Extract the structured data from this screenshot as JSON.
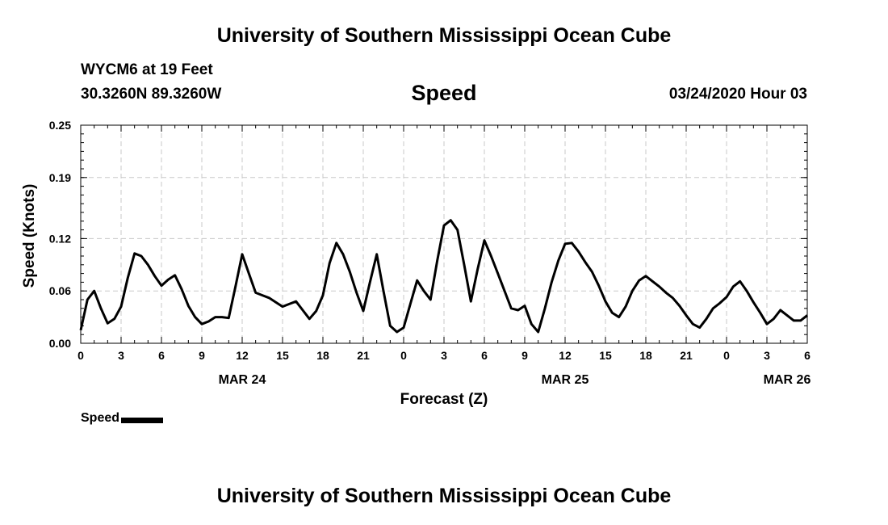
{
  "header": {
    "top_title": "University of Southern Mississippi Ocean Cube",
    "station": "WYCM6 at 19 Feet",
    "coords": "30.3260N 89.3260W",
    "variable_title": "Speed",
    "run_time": "03/24/2020 Hour 03"
  },
  "footer": {
    "bottom_title": "University of Southern Mississippi Ocean Cube"
  },
  "legend": {
    "label": "Speed"
  },
  "colors": {
    "line": "#000000",
    "grid": "#c8c8c8",
    "background": "#ffffff"
  },
  "chart_data": {
    "type": "line",
    "title": "Speed",
    "xlabel": "Forecast (Z)",
    "ylabel": "Speed (Knots)",
    "xlim": [
      0,
      54
    ],
    "ylim": [
      0.0,
      0.25
    ],
    "grid": true,
    "legend_placement": "bottom-left",
    "x_ticks": [
      0,
      3,
      6,
      9,
      12,
      15,
      18,
      21,
      24,
      27,
      30,
      33,
      36,
      39,
      42,
      45,
      48,
      51,
      54
    ],
    "x_tick_labels": [
      "0",
      "3",
      "6",
      "9",
      "12",
      "15",
      "18",
      "21",
      "0",
      "3",
      "6",
      "9",
      "12",
      "15",
      "18",
      "21",
      "0",
      "3",
      "6"
    ],
    "y_ticks": [
      0.0,
      0.06,
      0.12,
      0.19,
      0.25
    ],
    "y_tick_labels": [
      "0.00",
      "0.06",
      "0.12",
      "0.19",
      "0.25"
    ],
    "date_labels": [
      {
        "x": 12,
        "label": "MAR 24"
      },
      {
        "x": 36,
        "label": "MAR 25"
      },
      {
        "x": 52.5,
        "label": "MAR 26"
      }
    ],
    "series": [
      {
        "name": "Speed",
        "x": [
          0,
          0.5,
          1,
          1.5,
          2,
          2.5,
          3,
          3.5,
          4,
          4.5,
          5,
          5.5,
          6,
          6.5,
          7,
          7.5,
          8,
          8.5,
          9,
          9.5,
          10,
          10.5,
          11,
          11.5,
          12,
          12.5,
          13,
          13.5,
          14,
          14.5,
          15,
          15.5,
          16,
          16.5,
          17,
          17.5,
          18,
          18.5,
          19,
          19.5,
          20,
          20.5,
          21,
          21.5,
          22,
          22.5,
          23,
          23.5,
          24,
          24.5,
          25,
          25.5,
          26,
          26.5,
          27,
          27.5,
          28,
          28.5,
          29,
          29.5,
          30,
          30.5,
          31,
          31.5,
          32,
          32.5,
          33,
          33.5,
          34,
          34.5,
          35,
          35.5,
          36,
          36.5,
          37,
          37.5,
          38,
          38.5,
          39,
          39.5,
          40,
          40.5,
          41,
          41.5,
          42,
          42.5,
          43,
          43.5,
          44,
          44.5,
          45,
          45.5,
          46,
          46.5,
          47,
          47.5,
          48,
          48.5,
          49,
          49.5,
          50,
          50.5,
          51,
          51.5,
          52,
          52.5,
          53,
          53.5,
          54
        ],
        "values": [
          0.015,
          0.05,
          0.06,
          0.04,
          0.023,
          0.028,
          0.042,
          0.075,
          0.103,
          0.1,
          0.09,
          0.077,
          0.066,
          0.073,
          0.078,
          0.062,
          0.043,
          0.03,
          0.022,
          0.025,
          0.03,
          0.03,
          0.029,
          0.065,
          0.102,
          0.08,
          0.058,
          0.055,
          0.052,
          0.047,
          0.042,
          0.045,
          0.048,
          0.038,
          0.028,
          0.037,
          0.055,
          0.092,
          0.115,
          0.102,
          0.082,
          0.058,
          0.037,
          0.07,
          0.102,
          0.06,
          0.02,
          0.013,
          0.018,
          0.045,
          0.072,
          0.06,
          0.05,
          0.095,
          0.135,
          0.141,
          0.13,
          0.09,
          0.048,
          0.085,
          0.118,
          0.1,
          0.08,
          0.06,
          0.04,
          0.038,
          0.043,
          0.022,
          0.013,
          0.04,
          0.07,
          0.095,
          0.114,
          0.115,
          0.105,
          0.093,
          0.082,
          0.066,
          0.048,
          0.035,
          0.03,
          0.042,
          0.06,
          0.072,
          0.077,
          0.071,
          0.065,
          0.058,
          0.052,
          0.043,
          0.032,
          0.022,
          0.018,
          0.028,
          0.04,
          0.046,
          0.053,
          0.065,
          0.071,
          0.06,
          0.047,
          0.035,
          0.022,
          0.028,
          0.038,
          0.032,
          0.026,
          0.026,
          0.032
        ]
      }
    ]
  }
}
